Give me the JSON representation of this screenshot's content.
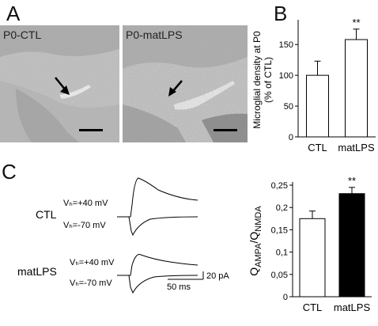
{
  "panels": {
    "a": "A",
    "b": "B",
    "c": "C"
  },
  "micrographs": [
    {
      "label": "P0-CTL"
    },
    {
      "label": "P0-matLPS"
    }
  ],
  "traces": {
    "ctl_label": "CTL",
    "matlps_label": "matLPS",
    "vh_pos": "Vₕ=+40 mV",
    "vh_neg": "Vₕ=-70 mV",
    "scale_current": "20 pA",
    "scale_time": "50 ms"
  },
  "chart_data": [
    {
      "type": "bar",
      "categories": [
        "CTL",
        "matLPS"
      ],
      "values": [
        100,
        158
      ],
      "errors": [
        23,
        17
      ],
      "ylabel": "Microglial density at P0 (% of CTL)",
      "yticks": [
        "0",
        "50",
        "100",
        "150"
      ],
      "ylim": [
        0,
        185
      ],
      "significance": "**",
      "colors": [
        "#ffffff",
        "#ffffff"
      ]
    },
    {
      "type": "bar",
      "categories": [
        "CTL",
        "matLPS"
      ],
      "values": [
        0.175,
        0.231
      ],
      "errors": [
        0.017,
        0.014
      ],
      "ylabel": "Q_AMPA/Q_NMDA",
      "yticks": [
        "0",
        "0,05",
        "0,1",
        "0,15",
        "0,2",
        "0,25"
      ],
      "ylim": [
        0,
        0.25
      ],
      "significance": "**",
      "colors": [
        "#ffffff",
        "#000000"
      ]
    }
  ]
}
